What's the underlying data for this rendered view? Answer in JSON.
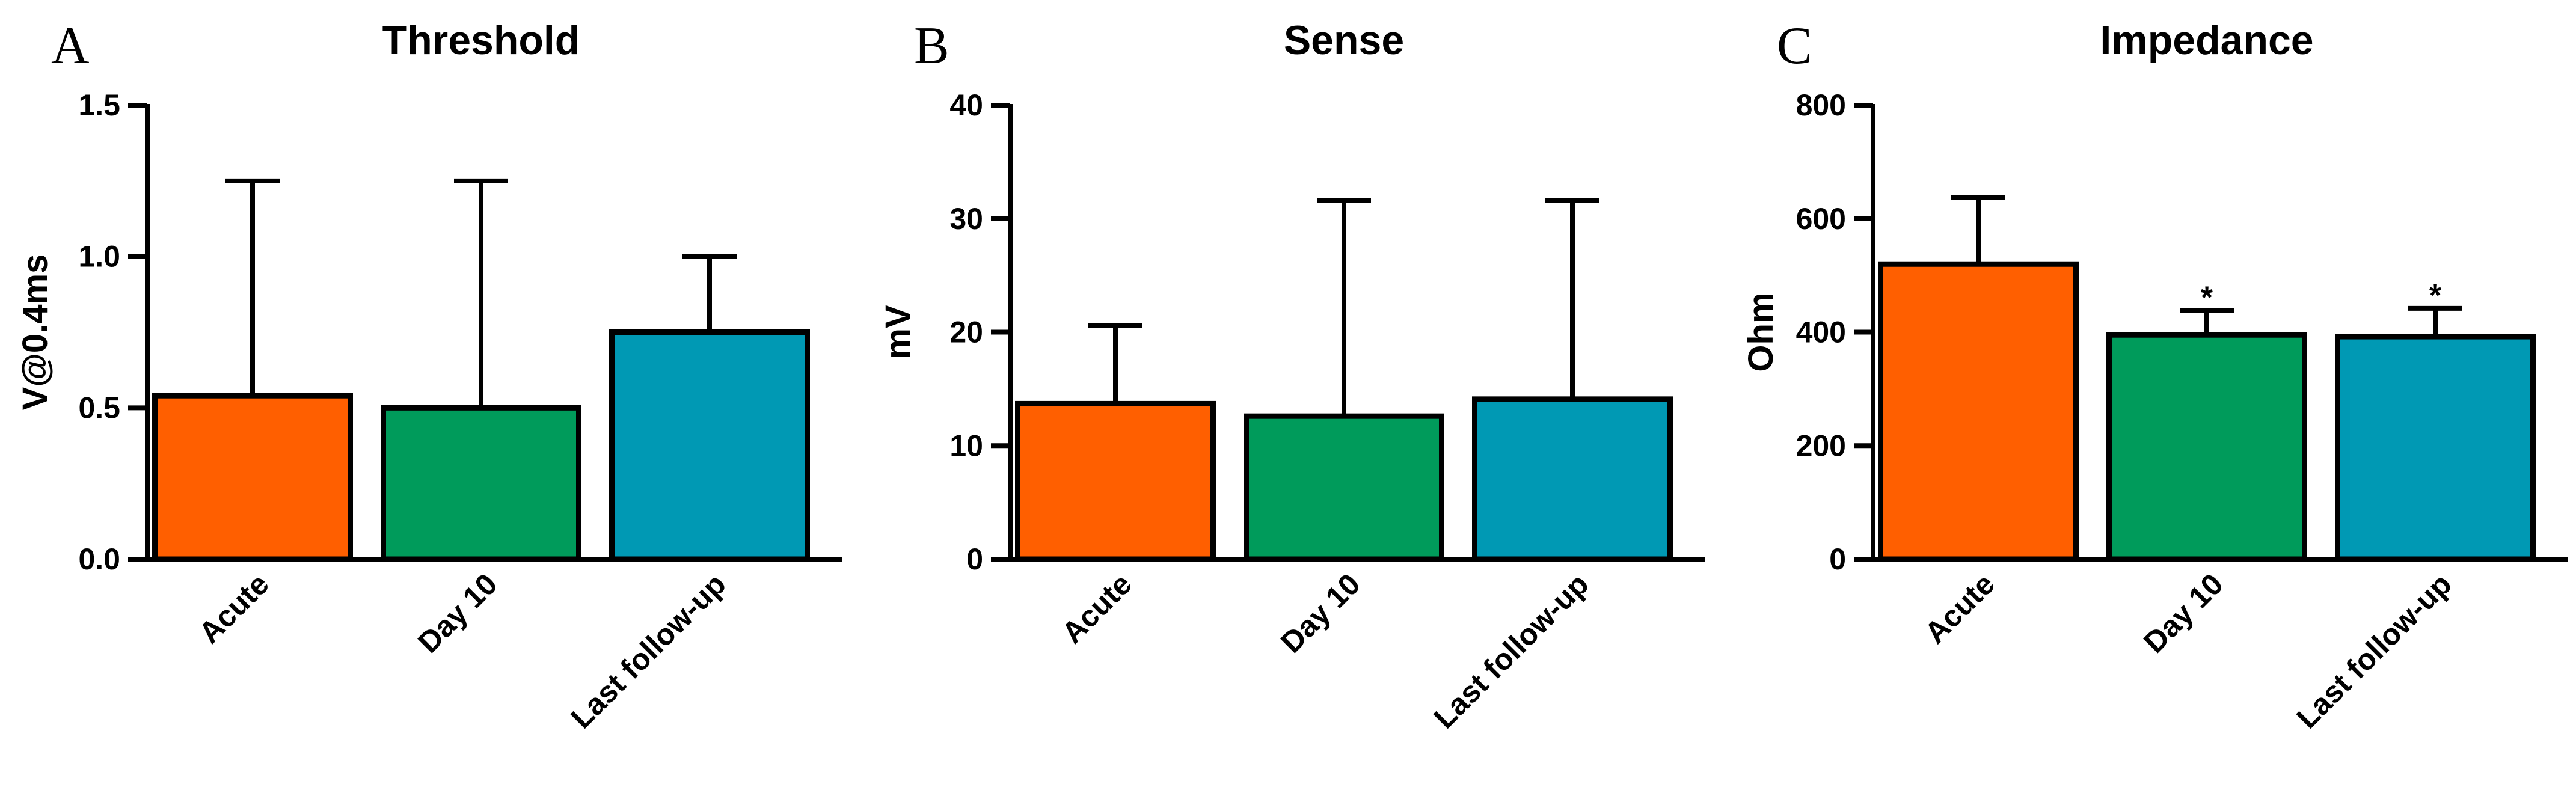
{
  "chart_data": [
    {
      "type": "bar",
      "panel": "A",
      "title": "Threshold",
      "xlabel": "",
      "ylabel": "V@0.4ms",
      "ylim": [
        0,
        1.5
      ],
      "yticks": [
        "0.0",
        "0.5",
        "1.0",
        "1.5"
      ],
      "categories": [
        "Acute",
        "Day 10",
        "Last follow-up"
      ],
      "values": [
        0.54,
        0.5,
        0.75
      ],
      "error_upper": [
        1.25,
        1.25,
        1.0
      ],
      "annotations": [
        "",
        "",
        ""
      ],
      "colors": [
        "#ff5f00",
        "#009b5b",
        "#0099b4"
      ]
    },
    {
      "type": "bar",
      "panel": "B",
      "title": "Sense",
      "xlabel": "",
      "ylabel": "mV",
      "ylim": [
        0,
        40
      ],
      "yticks": [
        "0",
        "10",
        "20",
        "30",
        "40"
      ],
      "categories": [
        "Acute",
        "Day 10",
        "Last follow-up"
      ],
      "values": [
        13.7,
        12.6,
        14.1
      ],
      "error_upper": [
        20.6,
        31.6,
        31.6
      ],
      "annotations": [
        "",
        "",
        ""
      ],
      "colors": [
        "#ff5f00",
        "#009b5b",
        "#0099b4"
      ]
    },
    {
      "type": "bar",
      "panel": "C",
      "title": "Impedance",
      "xlabel": "",
      "ylabel": "Ohm",
      "ylim": [
        0,
        800
      ],
      "yticks": [
        "0",
        "200",
        "400",
        "600",
        "800"
      ],
      "categories": [
        "Acute",
        "Day 10",
        "Last follow-up"
      ],
      "values": [
        520,
        395,
        392
      ],
      "error_upper": [
        637,
        438,
        442
      ],
      "annotations": [
        "",
        "*",
        "*"
      ],
      "colors": [
        "#ff5f00",
        "#009b5b",
        "#0099b4"
      ]
    }
  ]
}
